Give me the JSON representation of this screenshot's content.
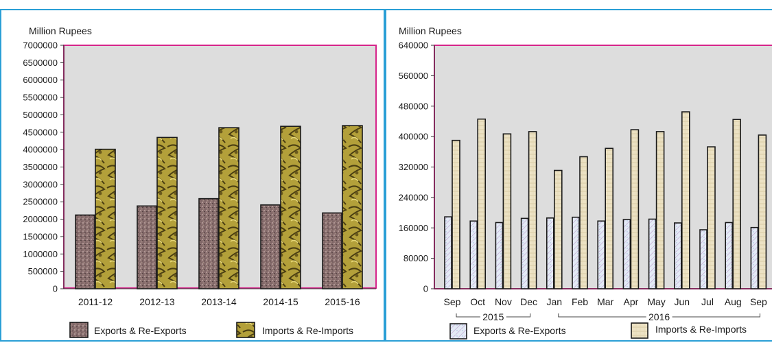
{
  "chart_data": [
    {
      "type": "bar",
      "ylabel": "Million Rupees",
      "ylim": [
        0,
        7000000
      ],
      "yticks": [
        0,
        500000,
        1000000,
        1500000,
        2000000,
        2500000,
        3000000,
        3500000,
        4000000,
        4500000,
        5000000,
        5500000,
        6000000,
        6500000,
        7000000
      ],
      "categories": [
        "2011-12",
        "2012-13",
        "2013-14",
        "2014-15",
        "2015-16"
      ],
      "series": [
        {
          "name": "Exports & Re-Exports",
          "values": [
            2120000,
            2380000,
            2590000,
            2410000,
            2180000
          ]
        },
        {
          "name": "Imports & Re-Imports",
          "values": [
            4010000,
            4350000,
            4630000,
            4670000,
            4690000
          ]
        }
      ],
      "legend_position": "bottom",
      "grid": false
    },
    {
      "type": "bar",
      "ylabel": "Million Rupees",
      "ylim": [
        0,
        640000
      ],
      "yticks": [
        0,
        80000,
        160000,
        240000,
        320000,
        400000,
        480000,
        560000,
        640000
      ],
      "categories": [
        "Sep",
        "Oct",
        "Nov",
        "Dec",
        "Jan",
        "Feb",
        "Mar",
        "Apr",
        "May",
        "Jun",
        "Jul",
        "Aug",
        "Sep"
      ],
      "year_groups": [
        {
          "label": "2015",
          "categories": [
            "Sep",
            "Oct",
            "Nov",
            "Dec"
          ]
        },
        {
          "label": "2016",
          "categories": [
            "Jan",
            "Feb",
            "Mar",
            "Apr",
            "May",
            "Jun",
            "Jul",
            "Aug",
            "Sep"
          ]
        }
      ],
      "series": [
        {
          "name": "Exports & Re-Exports",
          "values": [
            189000,
            178000,
            174000,
            185000,
            186000,
            188000,
            178000,
            182000,
            183000,
            173000,
            155000,
            174000,
            161000
          ]
        },
        {
          "name": "Imports & Re-Imports",
          "values": [
            390000,
            446000,
            407000,
            413000,
            311000,
            347000,
            369000,
            418000,
            413000,
            465000,
            373000,
            445000,
            404000
          ]
        }
      ],
      "legend_position": "bottom",
      "grid": false
    }
  ],
  "colors": {
    "frame": "#2a9fd6",
    "plot_border": "#d6248a",
    "plot_background": "#dddddd",
    "annual_exports": "#8a6f6f",
    "annual_imports": "#b3a03a",
    "monthly_exports": "#e3eaf5",
    "monthly_imports": "#ece2c4"
  }
}
